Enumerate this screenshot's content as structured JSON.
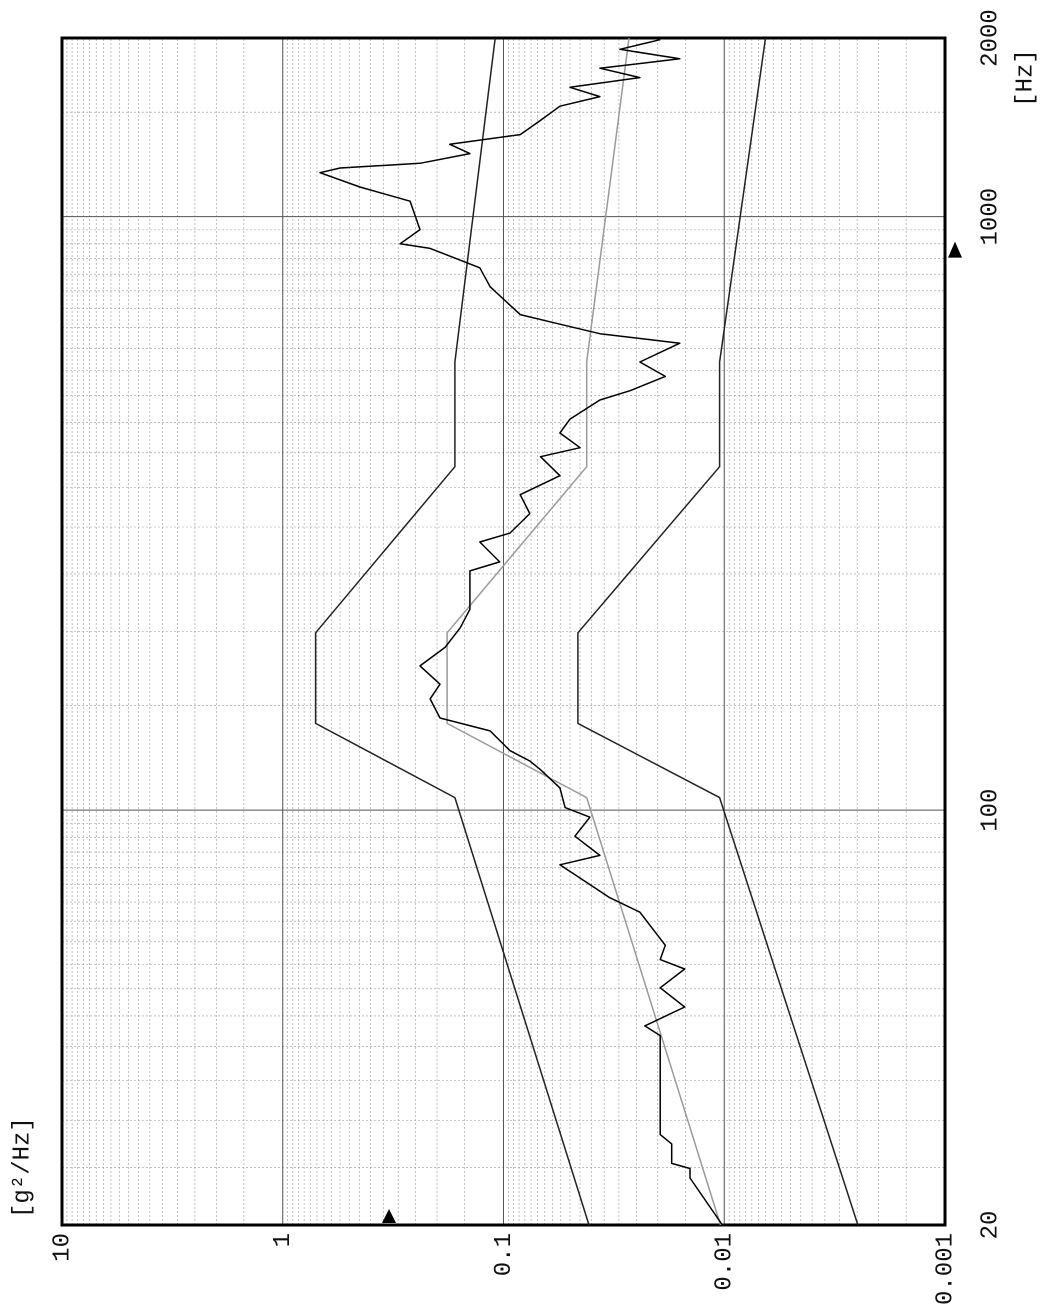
{
  "chart_data": {
    "type": "line",
    "xlabel": "[Hz]",
    "ylabel": "[g²/Hz]",
    "xscale": "log",
    "yscale": "log",
    "xlim": [
      20,
      2000
    ],
    "ylim": [
      0.001,
      10
    ],
    "xticks": [
      20,
      100,
      1000,
      2000
    ],
    "yticks": [
      0.001,
      0.01,
      0.1,
      1,
      10
    ],
    "grid": true,
    "minor_grid": true,
    "x_marker": 880,
    "y_marker": 0.33,
    "series": [
      {
        "color": "#222222",
        "x": [
          20,
          105,
          140,
          199,
          379,
          569,
          2000
        ],
        "values": [
          0.041,
          0.166,
          0.71,
          0.71,
          0.166,
          0.166,
          0.109
        ]
      },
      {
        "color": "#222222",
        "x": [
          20,
          105,
          140,
          199,
          379,
          569,
          2000
        ],
        "values": [
          0.00248,
          0.0105,
          0.046,
          0.046,
          0.0105,
          0.0105,
          0.0065
        ]
      },
      {
        "color": "#9a9a9a",
        "x": [
          20,
          105,
          140,
          199,
          379,
          569,
          2000
        ],
        "values": [
          0.0104,
          0.042,
          0.18,
          0.18,
          0.042,
          0.042,
          0.027
        ]
      },
      {
        "color": "#000000",
        "x": [
          20,
          24.0,
          24.9,
          25.4,
          27.4,
          28.4,
          41.7,
          43.3,
          46.6,
          50.2,
          54.0,
          56.0,
          59.2,
          67.3,
          71.2,
          80.9,
          83.9,
          90.4,
          97.3,
          101,
          109,
          117,
          121,
          126,
          136,
          143,
          154,
          163,
          175,
          188,
          203,
          218,
          253,
          262,
          283,
          293,
          316,
          340,
          366,
          394,
          408,
          432,
          456,
          491,
          509,
          538,
          569,
          612,
          635,
          659,
          684,
          762,
          820,
          884,
          900,
          951,
          1062,
          1122,
          1186,
          1208,
          1230,
          1277,
          1324,
          1375,
          1453,
          1535,
          1593,
          1652,
          1715,
          1779,
          1845,
          1914,
          1987
        ],
        "values": [
          0.0102,
          0.0143,
          0.0143,
          0.0173,
          0.0173,
          0.0195,
          0.0195,
          0.0229,
          0.0151,
          0.0195,
          0.0151,
          0.0195,
          0.0185,
          0.0241,
          0.033,
          0.0555,
          0.0366,
          0.0475,
          0.0406,
          0.0526,
          0.0555,
          0.068,
          0.076,
          0.0935,
          0.115,
          0.194,
          0.215,
          0.194,
          0.239,
          0.184,
          0.157,
          0.142,
          0.142,
          0.104,
          0.128,
          0.0935,
          0.076,
          0.084,
          0.0555,
          0.068,
          0.045,
          0.0555,
          0.05,
          0.0366,
          0.0267,
          0.0185,
          0.0241,
          0.0159,
          0.0366,
          0.0555,
          0.084,
          0.115,
          0.128,
          0.215,
          0.294,
          0.239,
          0.265,
          0.447,
          0.678,
          0.55,
          0.239,
          0.142,
          0.175,
          0.084,
          0.068,
          0.0555,
          0.0366,
          0.05,
          0.0241,
          0.0366,
          0.0159,
          0.0297,
          0.0195
        ]
      }
    ]
  }
}
